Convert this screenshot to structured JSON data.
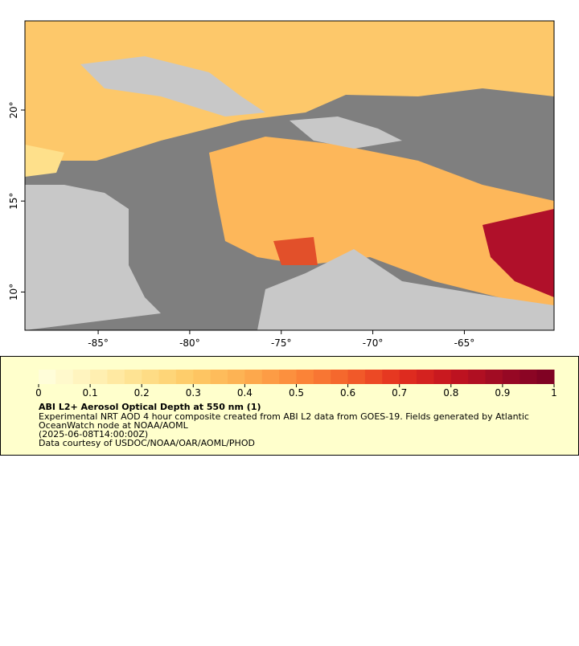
{
  "map": {
    "xlim": [
      -89,
      -60.1
    ],
    "ylim": [
      7.9,
      24.9
    ],
    "xticks": [
      {
        "value": -85,
        "label": "-85°"
      },
      {
        "value": -80,
        "label": "-80°"
      },
      {
        "value": -75,
        "label": "-75°"
      },
      {
        "value": -70,
        "label": "-70°"
      },
      {
        "value": -65,
        "label": "-65°"
      }
    ],
    "yticks": [
      {
        "value": 10,
        "label": "10°"
      },
      {
        "value": 15,
        "label": "15°"
      },
      {
        "value": 20,
        "label": "20°"
      }
    ]
  },
  "colorbar": {
    "lim": [
      0,
      1
    ],
    "ticks": [
      0,
      0.1,
      0.2,
      0.3,
      0.4,
      0.5,
      0.6,
      0.7,
      0.8,
      0.9,
      1
    ],
    "colormap": [
      "#ffffe0",
      "#fff2b8",
      "#fee08b",
      "#fec965",
      "#fdae50",
      "#fc8a3a",
      "#f4612b",
      "#e3301f",
      "#c4141f",
      "#9b0a24",
      "#7a0023"
    ],
    "steps": 30
  },
  "legend": {
    "title": "ABI L2+ Aerosol Optical Depth at 550 nm (1)",
    "lines": [
      "Experimental NRT AOD 4 hour composite created from ABI L2 data from GOES-19. Fields generated by Atlantic",
      "OceanWatch node at NOAA/AOML",
      "(2025-06-08T14:00:00Z)",
      "Data courtesy of USDOC/NOAA/OAR/AOML/PHOD"
    ]
  }
}
